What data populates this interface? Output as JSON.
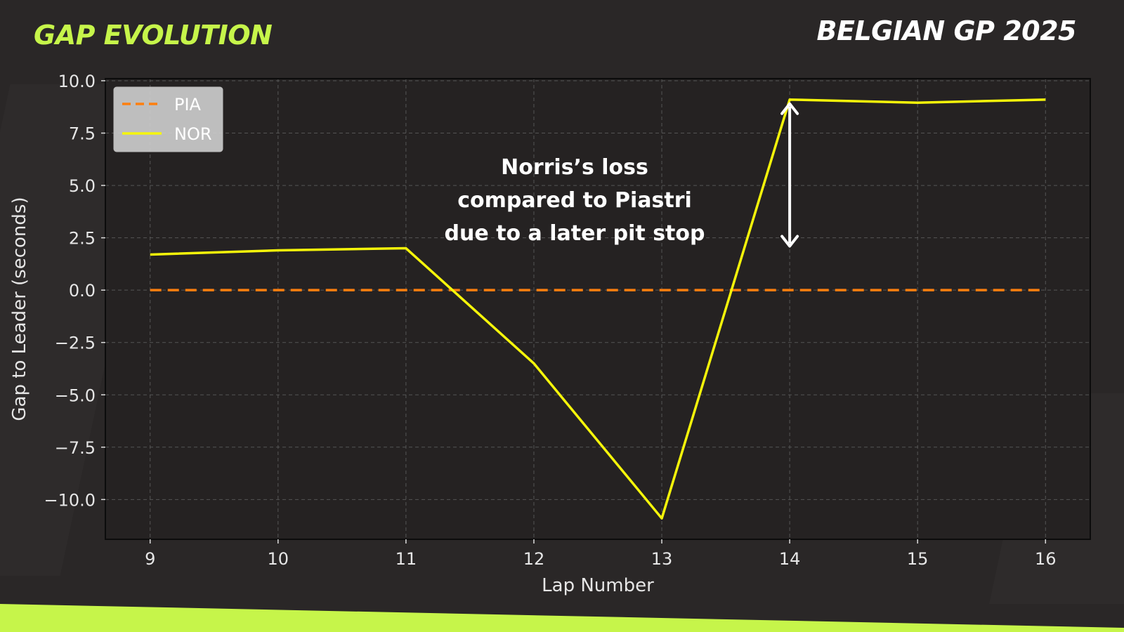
{
  "header": {
    "title": "GAP EVOLUTION",
    "event": "BELGIAN GP 2025"
  },
  "colors": {
    "accent": "#c6f54a",
    "background": "#2a2727",
    "plot_background": "#252222",
    "pia_series": "#ff7f0e",
    "nor_series": "#f5f50a"
  },
  "chart_data": {
    "type": "line",
    "title": "",
    "xlabel": "Lap Number",
    "ylabel": "Gap to Leader (seconds)",
    "xlim": [
      8.65,
      16.35
    ],
    "ylim": [
      -11.9,
      10.1
    ],
    "xticks": [
      9,
      10,
      11,
      12,
      13,
      14,
      15,
      16
    ],
    "xtick_labels": [
      "9",
      "10",
      "11",
      "12",
      "13",
      "14",
      "15",
      "16"
    ],
    "yticks": [
      10.0,
      7.5,
      5.0,
      2.5,
      0.0,
      -2.5,
      -5.0,
      -7.5,
      -10.0
    ],
    "ytick_labels": [
      "10.0",
      "7.5",
      "5.0",
      "2.5",
      "0.0",
      "−2.5",
      "−5.0",
      "−7.5",
      "−10.0"
    ],
    "grid": true,
    "legend_position": "top-left",
    "series": [
      {
        "name": "PIA",
        "style": "dashed",
        "color": "#ff7f0e",
        "x": [
          9,
          10,
          11,
          12,
          13,
          14,
          15,
          16
        ],
        "y": [
          0,
          0,
          0,
          0,
          0,
          0,
          0,
          0
        ]
      },
      {
        "name": "NOR",
        "style": "solid",
        "color": "#f5f50a",
        "x": [
          9,
          10,
          11,
          12,
          13,
          14,
          15,
          16
        ],
        "y": [
          1.7,
          1.9,
          2.0,
          -3.5,
          -10.9,
          9.1,
          8.95,
          9.1
        ]
      }
    ],
    "annotation": {
      "lines": [
        "Norris’s loss",
        "compared to Piastri",
        "due to a later pit stop"
      ],
      "arrow_x": 14,
      "arrow_y_from": 2.1,
      "arrow_y_to": 8.9
    }
  }
}
